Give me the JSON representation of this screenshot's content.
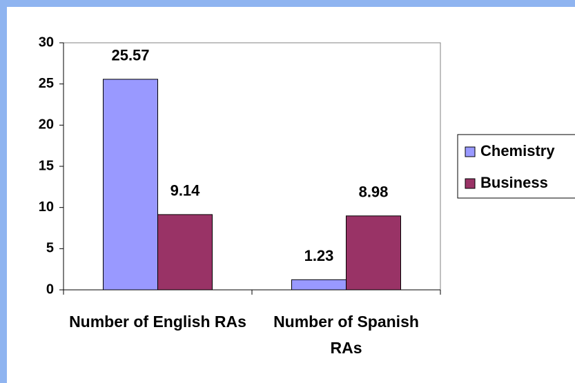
{
  "chart_data": {
    "type": "bar",
    "categories": [
      "Number of English RAs",
      "Number of Spanish RAs"
    ],
    "series": [
      {
        "name": "Chemistry",
        "color": "#9999ff",
        "values": [
          25.57,
          1.23
        ]
      },
      {
        "name": "Business",
        "color": "#993366",
        "values": [
          9.14,
          8.98
        ]
      }
    ],
    "ylim": [
      0,
      30
    ],
    "yticks": [
      0,
      5,
      10,
      15,
      20,
      25,
      30
    ],
    "legend": "right"
  }
}
